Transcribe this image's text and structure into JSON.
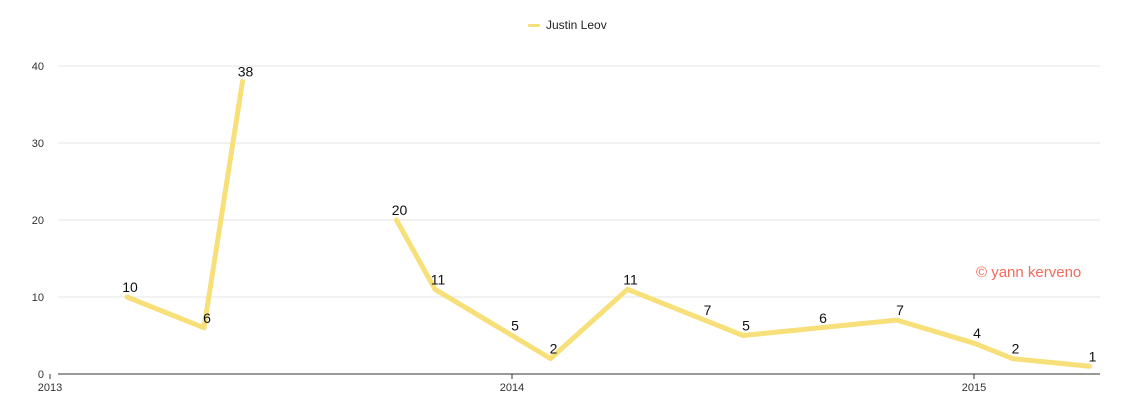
{
  "chart_data": {
    "type": "line",
    "x_axis": {
      "ticks": [
        "2013",
        "2014",
        "2015"
      ]
    },
    "y_axis": {
      "ticks": [
        "0",
        "10",
        "20",
        "30",
        "40"
      ],
      "ylim": [
        0,
        40
      ]
    },
    "grid": true,
    "legend_position": "top-center",
    "series": [
      {
        "name": "Justin Leov",
        "color": "#f7e07a",
        "segments": [
          [
            {
              "x": "2013-03",
              "y": 10,
              "label": "10"
            },
            {
              "x": "2013-05",
              "y": 6,
              "label": "6"
            },
            {
              "x": "2013-06",
              "y": 38,
              "label": "38"
            }
          ],
          [
            {
              "x": "2013-10",
              "y": 20,
              "label": "20"
            },
            {
              "x": "2013-11",
              "y": 11,
              "label": "11"
            },
            {
              "x": "2014-01",
              "y": 5,
              "label": "5"
            },
            {
              "x": "2014-02",
              "y": 2,
              "label": "2"
            },
            {
              "x": "2014-04",
              "y": 11,
              "label": "11"
            },
            {
              "x": "2014-06",
              "y": 7,
              "label": "7"
            },
            {
              "x": "2014-07",
              "y": 5,
              "label": "5"
            },
            {
              "x": "2014-09",
              "y": 6,
              "label": "6"
            },
            {
              "x": "2014-11",
              "y": 7,
              "label": "7"
            },
            {
              "x": "2015-01",
              "y": 4,
              "label": "4"
            },
            {
              "x": "2015-02",
              "y": 2,
              "label": "2"
            },
            {
              "x": "2015-04",
              "y": 1,
              "label": "1"
            }
          ]
        ]
      }
    ]
  },
  "watermark": {
    "text": "© yann kerveno",
    "color": "#f26b5b"
  }
}
